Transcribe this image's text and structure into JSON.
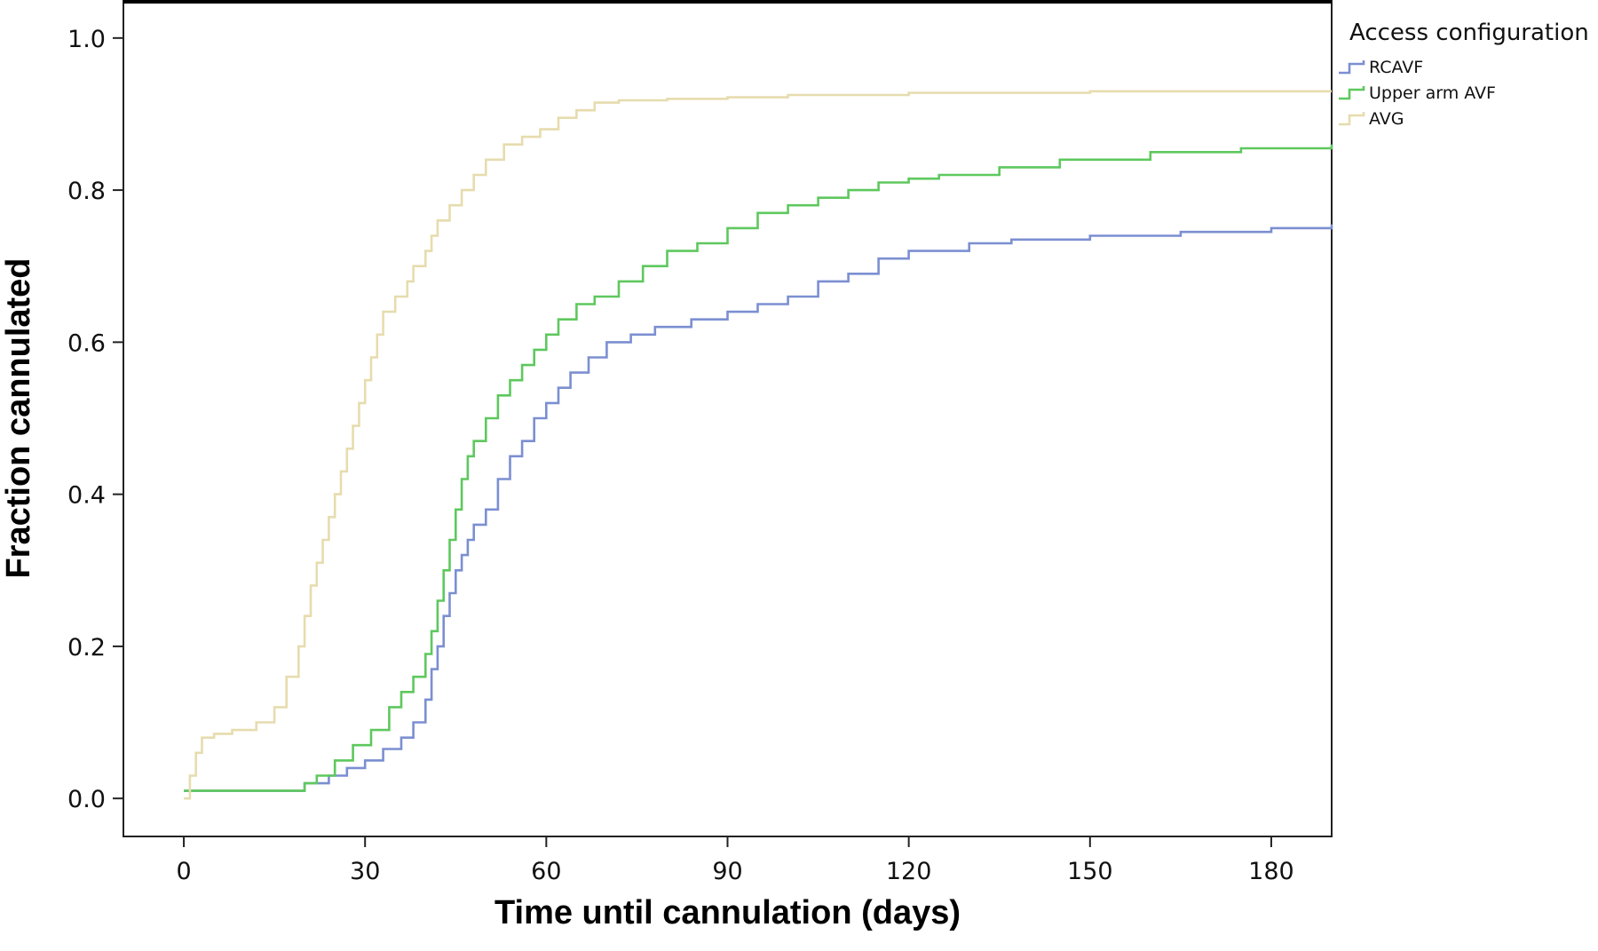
{
  "chart_data": {
    "type": "line",
    "subtype": "step",
    "title": "",
    "xlabel": "Time until cannulation (days)",
    "ylabel": "Fraction cannulated",
    "xlim": [
      -10,
      190
    ],
    "ylim": [
      -0.05,
      1.05
    ],
    "xticks": [
      0,
      30,
      60,
      90,
      120,
      150,
      180
    ],
    "xtick_labels": [
      "0",
      "30",
      "60",
      "90",
      "120",
      "150",
      "180"
    ],
    "yticks": [
      0.0,
      0.2,
      0.4,
      0.6,
      0.8,
      1.0
    ],
    "ytick_labels": [
      "0.0",
      "0.2",
      "0.4",
      "0.6",
      "0.8",
      "1.0"
    ],
    "grid": false,
    "legend": {
      "title": "Access configuration",
      "position": "top-right, outside plot"
    },
    "series": [
      {
        "name": "RCAVF",
        "color": "#7b8fd1",
        "x": [
          0,
          1,
          20,
          24,
          27,
          30,
          33,
          36,
          38,
          40,
          41,
          42,
          43,
          44,
          45,
          46,
          47,
          48,
          50,
          52,
          54,
          56,
          58,
          60,
          62,
          64,
          67,
          70,
          74,
          78,
          84,
          90,
          95,
          100,
          105,
          110,
          115,
          120,
          124,
          130,
          137,
          150,
          165,
          180,
          190
        ],
        "y": [
          0.01,
          0.01,
          0.02,
          0.03,
          0.04,
          0.05,
          0.065,
          0.08,
          0.1,
          0.13,
          0.17,
          0.2,
          0.24,
          0.27,
          0.3,
          0.32,
          0.34,
          0.36,
          0.38,
          0.42,
          0.45,
          0.47,
          0.5,
          0.52,
          0.54,
          0.56,
          0.58,
          0.6,
          0.61,
          0.62,
          0.63,
          0.64,
          0.65,
          0.66,
          0.68,
          0.69,
          0.71,
          0.72,
          0.72,
          0.73,
          0.735,
          0.74,
          0.745,
          0.75,
          0.755
        ]
      },
      {
        "name": "Upper arm AVF",
        "color": "#5ec85e",
        "x": [
          0,
          1,
          20,
          22,
          25,
          28,
          31,
          34,
          36,
          38,
          40,
          41,
          42,
          43,
          44,
          45,
          46,
          47,
          48,
          50,
          52,
          54,
          56,
          58,
          60,
          62,
          65,
          68,
          72,
          76,
          80,
          85,
          90,
          95,
          100,
          105,
          110,
          115,
          120,
          125,
          135,
          145,
          160,
          175,
          190
        ],
        "y": [
          0.01,
          0.01,
          0.02,
          0.03,
          0.05,
          0.07,
          0.09,
          0.12,
          0.14,
          0.16,
          0.19,
          0.22,
          0.26,
          0.3,
          0.34,
          0.38,
          0.42,
          0.45,
          0.47,
          0.5,
          0.53,
          0.55,
          0.57,
          0.59,
          0.61,
          0.63,
          0.65,
          0.66,
          0.68,
          0.7,
          0.72,
          0.73,
          0.75,
          0.77,
          0.78,
          0.79,
          0.8,
          0.81,
          0.815,
          0.82,
          0.83,
          0.84,
          0.85,
          0.855,
          0.86
        ]
      },
      {
        "name": "AVG",
        "color": "#e6dcae",
        "x": [
          0,
          1,
          2,
          3,
          5,
          8,
          12,
          15,
          17,
          19,
          20,
          21,
          22,
          23,
          24,
          25,
          26,
          27,
          28,
          29,
          30,
          31,
          32,
          33,
          35,
          37,
          38,
          40,
          41,
          42,
          44,
          46,
          48,
          50,
          53,
          56,
          59,
          62,
          65,
          68,
          72,
          80,
          90,
          100,
          120,
          150,
          190
        ],
        "y": [
          0.0,
          0.03,
          0.06,
          0.08,
          0.085,
          0.09,
          0.1,
          0.12,
          0.16,
          0.2,
          0.24,
          0.28,
          0.31,
          0.34,
          0.37,
          0.4,
          0.43,
          0.46,
          0.49,
          0.52,
          0.55,
          0.58,
          0.61,
          0.64,
          0.66,
          0.68,
          0.7,
          0.72,
          0.74,
          0.76,
          0.78,
          0.8,
          0.82,
          0.84,
          0.86,
          0.87,
          0.88,
          0.895,
          0.905,
          0.915,
          0.918,
          0.92,
          0.922,
          0.925,
          0.928,
          0.93,
          0.93
        ]
      }
    ]
  }
}
